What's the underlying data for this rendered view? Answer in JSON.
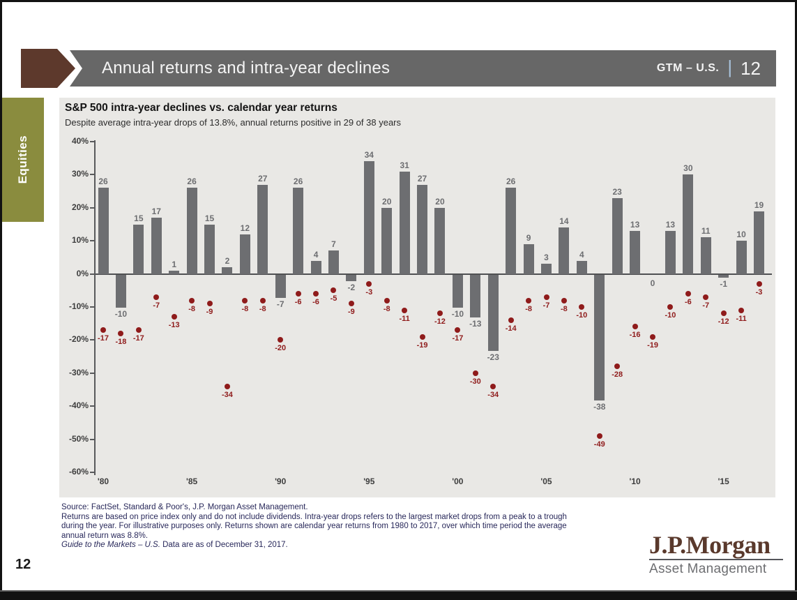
{
  "page": {
    "number": "12"
  },
  "header": {
    "title": "Annual returns and intra-year declines",
    "gtm_label": "GTM – U.S.",
    "separator": "|",
    "page_num": "12"
  },
  "sidebar": {
    "tab_label": "Equities"
  },
  "chart_data": {
    "type": "bar",
    "title": "S&P 500 intra-year declines vs. calendar year returns",
    "subtitle": "Despite average intra-year drops of 13.8%, annual returns positive in 29 of 38 years",
    "x": [
      1980,
      1981,
      1982,
      1983,
      1984,
      1985,
      1986,
      1987,
      1988,
      1989,
      1990,
      1991,
      1992,
      1993,
      1994,
      1995,
      1996,
      1997,
      1998,
      1999,
      2000,
      2001,
      2002,
      2003,
      2004,
      2005,
      2006,
      2007,
      2008,
      2009,
      2010,
      2011,
      2012,
      2013,
      2014,
      2015,
      2016,
      2017
    ],
    "series": [
      {
        "name": "Calendar year returns",
        "type": "bar",
        "values": [
          26,
          -10,
          15,
          17,
          1,
          26,
          15,
          2,
          12,
          27,
          -7,
          26,
          4,
          7,
          -2,
          34,
          20,
          31,
          27,
          20,
          -10,
          -13,
          -23,
          26,
          9,
          3,
          14,
          4,
          -38,
          23,
          13,
          0,
          13,
          30,
          11,
          -1,
          10,
          19
        ]
      },
      {
        "name": "Intra-year declines",
        "type": "scatter",
        "values": [
          -17,
          -18,
          -17,
          -7,
          -13,
          -8,
          -9,
          -34,
          -8,
          -8,
          -20,
          -6,
          -6,
          -5,
          -9,
          -3,
          -8,
          -11,
          -19,
          -12,
          -17,
          -30,
          -34,
          -14,
          -8,
          -7,
          -8,
          -10,
          -49,
          -28,
          -16,
          -19,
          -10,
          -6,
          -7,
          -12,
          -11,
          -3
        ]
      }
    ],
    "ylim": [
      -60,
      40
    ],
    "ytick_step": 10,
    "ytick_labels": [
      "40%",
      "30%",
      "20%",
      "10%",
      "0%",
      "-10%",
      "-20%",
      "-30%",
      "-40%",
      "-50%",
      "-60%"
    ],
    "xtick_positions": [
      0,
      5,
      10,
      15,
      20,
      25,
      30,
      35
    ],
    "xtick_labels": [
      "'80",
      "'85",
      "'90",
      "'95",
      "'00",
      "'05",
      "'10",
      "'15"
    ],
    "grid": "off",
    "legend": "none",
    "colors": {
      "bar": "#6d6e71",
      "dot": "#8f1b1b",
      "axis": "#58595b"
    }
  },
  "footnotes": {
    "lines": [
      "Source: FactSet, Standard & Poor's, J.P. Morgan Asset Management.",
      "Returns are based on price index only and do not include dividends. Intra-year drops refers to the largest market drops from a peak to a trough",
      "during the year. For illustrative purposes only. Returns shown are calendar year returns from 1980 to 2017, over which time period the average",
      "annual return was 8.8%."
    ],
    "italic_lead": "Guide to the Markets – U.S.",
    "last_line_rest": " Data are as of December 31, 2017."
  },
  "logo": {
    "brand": "J.P.Morgan",
    "unit": "Asset Management"
  }
}
